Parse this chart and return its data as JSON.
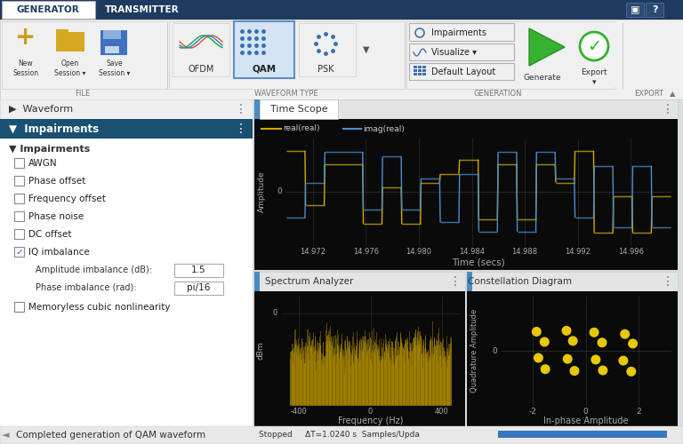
{
  "tab1": "GENERATOR",
  "tab2": "TRANSMITTER",
  "yellow_line": "#d4aa00",
  "blue_line": "#4a90d0",
  "spectrum_color": "#c8a000",
  "constellation_color": "#e8c800",
  "time_xlim": [
    14.97,
    14.999
  ],
  "time_xticks": [
    14.972,
    14.976,
    14.98,
    14.984,
    14.988,
    14.992,
    14.996
  ],
  "spec_xlim": [
    -500,
    500
  ],
  "spec_xticks": [
    -400,
    0,
    400
  ],
  "spec_ylim": [
    -55,
    10
  ],
  "const_xlim": [
    -3.2,
    3.2
  ],
  "const_xticks": [
    -2,
    0,
    2
  ],
  "const_ylim": [
    -2.8,
    2.8
  ],
  "amp_imbalance": "1.5",
  "phase_imbalance": "pi/16",
  "status_text": "Stopped     ΔT=1.0240 s  Samples/Upda",
  "bottom_text": "Completed generation of QAM waveform",
  "impairments_items": [
    "AWGN",
    "Phase offset",
    "Frequency offset",
    "Phase noise",
    "DC offset",
    "IQ imbalance"
  ],
  "constellation_points_x": [
    -1.85,
    -1.55,
    -0.72,
    -0.48,
    0.32,
    0.62,
    1.48,
    1.78,
    -1.78,
    -1.52,
    -0.68,
    -0.42,
    0.38,
    0.65,
    1.42,
    1.72
  ],
  "constellation_points_y": [
    1.12,
    0.52,
    1.18,
    0.58,
    1.08,
    0.48,
    0.98,
    0.42,
    -0.42,
    -1.08,
    -0.48,
    -1.18,
    -0.52,
    -1.15,
    -0.58,
    -1.22
  ]
}
